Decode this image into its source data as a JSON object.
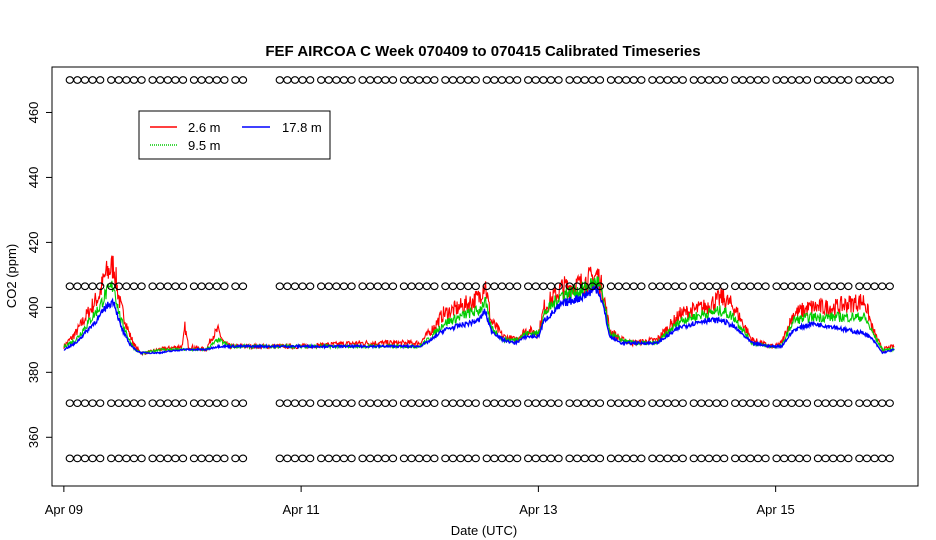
{
  "chart_data": {
    "type": "line",
    "title": "FEF AIRCOA C  Week 070409 to 070415  Calibrated Timeseries",
    "xlabel": "Date (UTC)",
    "ylabel": "CO2 (ppm)",
    "xlim": [
      -0.1,
      7.2
    ],
    "ylim": [
      345,
      474
    ],
    "x_ticks": [
      {
        "x": 0,
        "label": "Apr 09"
      },
      {
        "x": 2,
        "label": "Apr 11"
      },
      {
        "x": 4,
        "label": "Apr 13"
      },
      {
        "x": 6,
        "label": "Apr 15"
      }
    ],
    "y_ticks": [
      360,
      380,
      400,
      420,
      440,
      460
    ],
    "grid": false,
    "legend": {
      "placement": "top-left",
      "entries": [
        {
          "name": "2.6 m",
          "color": "#ff0000"
        },
        {
          "name": "9.5 m",
          "color": "#00cc00"
        },
        {
          "name": "17.8 m",
          "color": "#0000ff"
        }
      ]
    },
    "series": [
      {
        "name": "2.6 m",
        "color": "#ff0000",
        "x": [
          0,
          0.1,
          0.2,
          0.3,
          0.35,
          0.42,
          0.45,
          0.48,
          0.52,
          0.55,
          0.6,
          0.65,
          0.7,
          0.8,
          1.0,
          1.02,
          1.05,
          1.2,
          1.25,
          1.3,
          1.35,
          1.4,
          1.5,
          2.0,
          2.5,
          3.0,
          3.1,
          3.2,
          3.4,
          3.5,
          3.55,
          3.6,
          3.7,
          3.8,
          3.9,
          4.0,
          4.05,
          4.2,
          4.35,
          4.5,
          4.55,
          4.6,
          4.7,
          4.8,
          5.0,
          5.2,
          5.4,
          5.55,
          5.65,
          5.8,
          5.95,
          6.0,
          6.05,
          6.15,
          6.3,
          6.5,
          6.6,
          6.75,
          6.82,
          6.9,
          7.0
        ],
        "y": [
          388,
          392,
          398,
          404,
          410,
          413,
          406,
          400,
          396,
          392,
          388,
          386,
          386,
          387,
          388,
          394,
          388,
          387,
          391,
          393,
          389,
          388,
          388,
          388,
          389,
          389,
          393,
          398,
          401,
          403,
          408,
          396,
          391,
          390,
          393,
          392,
          400,
          406,
          407,
          410,
          404,
          393,
          390,
          389,
          390,
          398,
          400,
          403,
          400,
          390,
          388,
          388,
          389,
          398,
          400,
          400,
          401,
          402,
          393,
          387,
          388
        ]
      },
      {
        "name": "9.5 m",
        "color": "#00cc00",
        "x": [
          0,
          0.1,
          0.2,
          0.3,
          0.35,
          0.42,
          0.45,
          0.48,
          0.52,
          0.55,
          0.6,
          0.65,
          0.7,
          0.8,
          1.0,
          1.2,
          1.3,
          1.4,
          1.5,
          2.0,
          2.5,
          3.0,
          3.1,
          3.2,
          3.4,
          3.5,
          3.55,
          3.6,
          3.7,
          3.8,
          3.9,
          4.0,
          4.05,
          4.2,
          4.35,
          4.5,
          4.55,
          4.6,
          4.7,
          4.8,
          5.0,
          5.2,
          5.4,
          5.55,
          5.65,
          5.8,
          5.95,
          6.0,
          6.05,
          6.15,
          6.3,
          6.5,
          6.6,
          6.75,
          6.82,
          6.9,
          7.0
        ],
        "y": [
          388,
          390,
          395,
          400,
          404,
          407,
          401,
          396,
          393,
          390,
          387,
          386,
          386,
          387,
          387,
          387,
          390,
          388,
          388,
          388,
          388,
          388,
          391,
          395,
          398,
          399,
          402,
          394,
          390,
          390,
          392,
          392,
          398,
          404,
          405,
          408,
          402,
          392,
          390,
          389,
          389,
          396,
          398,
          399,
          397,
          389,
          388,
          388,
          388,
          396,
          397,
          397,
          397,
          397,
          392,
          387,
          387
        ]
      },
      {
        "name": "17.8 m",
        "color": "#0000ff",
        "x": [
          0,
          0.1,
          0.2,
          0.3,
          0.35,
          0.42,
          0.45,
          0.48,
          0.52,
          0.55,
          0.6,
          0.65,
          0.7,
          0.8,
          1.0,
          1.2,
          1.3,
          1.4,
          1.5,
          2.0,
          2.5,
          3.0,
          3.1,
          3.2,
          3.4,
          3.5,
          3.55,
          3.6,
          3.7,
          3.8,
          3.9,
          4.0,
          4.05,
          4.2,
          4.35,
          4.5,
          4.55,
          4.6,
          4.7,
          4.8,
          5.0,
          5.2,
          5.4,
          5.55,
          5.65,
          5.8,
          5.95,
          6.0,
          6.05,
          6.15,
          6.3,
          6.5,
          6.6,
          6.75,
          6.82,
          6.9,
          7.0
        ],
        "y": [
          387,
          389,
          393,
          397,
          400,
          402,
          398,
          394,
          391,
          389,
          387,
          386,
          386,
          386,
          387,
          387,
          388,
          388,
          388,
          388,
          388,
          388,
          390,
          393,
          395,
          396,
          399,
          393,
          390,
          389,
          391,
          391,
          396,
          401,
          403,
          406,
          400,
          391,
          389,
          389,
          389,
          394,
          396,
          396,
          394,
          389,
          388,
          388,
          388,
          393,
          395,
          394,
          393,
          392,
          390,
          386,
          387
        ]
      },
      {
        "name": "",
        "color": "#000000",
        "marker": "circle",
        "segments": [
          {
            "x_start": 0.05,
            "x_end": 1.52,
            "y": 470
          },
          {
            "x_start": 1.82,
            "x_end": 7.0,
            "y": 470
          },
          {
            "x_start": 0.05,
            "x_end": 1.52,
            "y": 406.5
          },
          {
            "x_start": 1.82,
            "x_end": 7.0,
            "y": 406.5
          },
          {
            "x_start": 0.05,
            "x_end": 1.52,
            "y": 370.5
          },
          {
            "x_start": 1.82,
            "x_end": 7.0,
            "y": 370.5
          },
          {
            "x_start": 0.05,
            "x_end": 1.52,
            "y": 353.5
          },
          {
            "x_start": 1.82,
            "x_end": 7.0,
            "y": 353.5
          }
        ]
      }
    ]
  }
}
